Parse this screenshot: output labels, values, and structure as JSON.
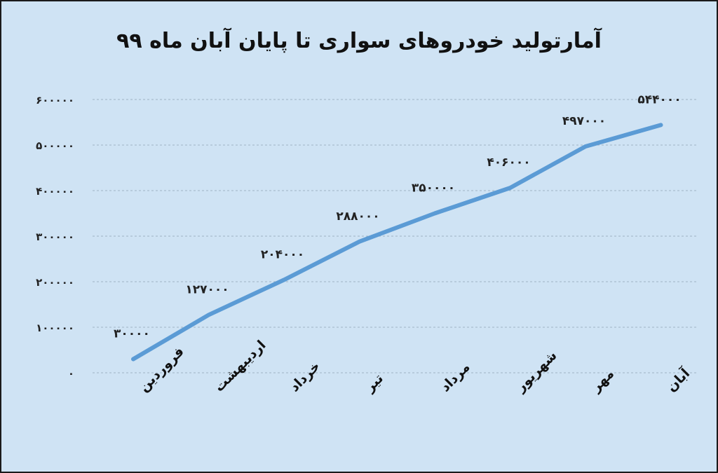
{
  "chart_data": {
    "type": "line",
    "title": "آمارتولید خودروهای سواری تا پایان آبان ماه ۹۹",
    "categories": [
      "فروردین",
      "اردیبهشت",
      "خرداد",
      "تیر",
      "مرداد",
      "شهریور",
      "مهر",
      "آبان"
    ],
    "values": [
      30000,
      127000,
      204000,
      288000,
      350000,
      406000,
      497000,
      544000
    ],
    "data_labels": [
      "۳۰۰۰۰",
      "۱۲۷۰۰۰",
      "۲۰۴۰۰۰",
      "۲۸۸۰۰۰",
      "۳۵۰۰۰۰",
      "۴۰۶۰۰۰",
      "۴۹۷۰۰۰",
      "۵۴۴۰۰۰"
    ],
    "y_ticks": [
      0,
      100000,
      200000,
      300000,
      400000,
      500000,
      600000
    ],
    "y_tick_labels": [
      "۰",
      "۱۰۰۰۰۰",
      "۲۰۰۰۰۰",
      "۳۰۰۰۰۰",
      "۴۰۰۰۰۰",
      "۵۰۰۰۰۰",
      "۶۰۰۰۰۰"
    ],
    "ylim": [
      0,
      600000
    ],
    "grid": true,
    "line_color": "#5b9bd5",
    "background_color": "#cfe3f4"
  }
}
